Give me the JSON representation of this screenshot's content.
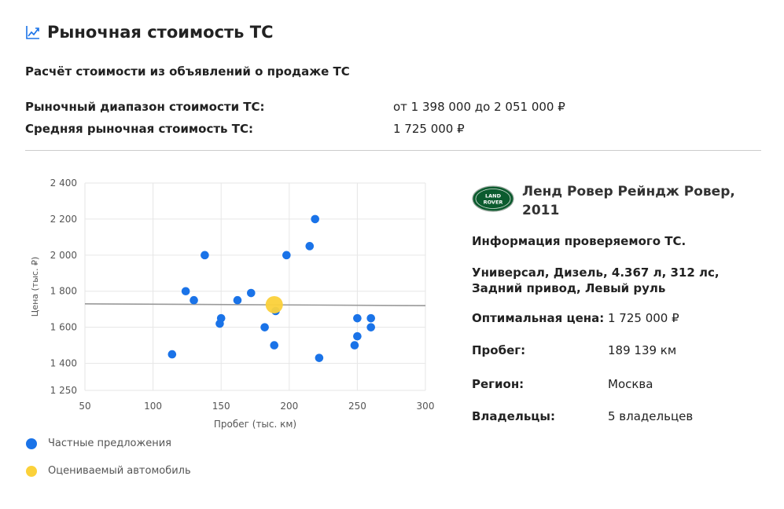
{
  "header": {
    "title": "Рыночная стоимость ТС",
    "icon": "trending-up-icon"
  },
  "subtitle": "Расчёт стоимости из объявлений о продаже ТС",
  "summary": {
    "range_label": "Рыночный диапазон стоимости ТС:",
    "range_value": "от 1 398 000 до 2 051 000 ₽",
    "avg_label": "Средняя рыночная стоимость ТС:",
    "avg_value": "1 725 000 ₽"
  },
  "colors": {
    "accent": "#1a73e8",
    "private": "#1a73e8",
    "estimated": "#fbd13a",
    "trend": "#999999"
  },
  "chart_data": {
    "type": "scatter",
    "xlabel": "Пробег (тыс. км)",
    "ylabel": "Цена (тыс. ₽)",
    "xlim": [
      50,
      300
    ],
    "ylim": [
      1250,
      2400
    ],
    "xticks": [
      50,
      100,
      150,
      200,
      250,
      300
    ],
    "xtick_labels": [
      "50",
      "100",
      "150",
      "200",
      "250",
      "300"
    ],
    "yticks": [
      1250,
      1400,
      1600,
      1800,
      2000,
      2200,
      2400
    ],
    "ytick_labels": [
      "1 250",
      "1 400",
      "1 600",
      "1 800",
      "2 000",
      "2 200",
      "2 400"
    ],
    "grid": true,
    "legend_position": "bottom-left",
    "series": [
      {
        "name": "Частные предложения",
        "points": [
          [
            114,
            1450
          ],
          [
            124,
            1800
          ],
          [
            130,
            1750
          ],
          [
            138,
            2000
          ],
          [
            149,
            1620
          ],
          [
            150,
            1650
          ],
          [
            162,
            1750
          ],
          [
            172,
            1790
          ],
          [
            182,
            1600
          ],
          [
            189,
            1500
          ],
          [
            190,
            1690
          ],
          [
            198,
            2000
          ],
          [
            215,
            2050
          ],
          [
            219,
            2200
          ],
          [
            222,
            1430
          ],
          [
            248,
            1500
          ],
          [
            250,
            1550
          ],
          [
            250,
            1650
          ],
          [
            260,
            1650
          ],
          [
            260,
            1600
          ]
        ]
      },
      {
        "name": "Оцениваемый автомобиль",
        "points": [
          [
            189,
            1725
          ]
        ]
      }
    ],
    "trend_line": {
      "points": [
        [
          50,
          1730
        ],
        [
          300,
          1720
        ]
      ]
    }
  },
  "car": {
    "logo_text_top": "LAND",
    "logo_text_bottom": "ROVER",
    "title": "Ленд Ровер Рейндж Ровер, 2011",
    "info_heading": "Информация проверяемого ТС.",
    "description": "Универсал, Дизель, 4.367 л, 312 лс, Задний привод, Левый руль",
    "rows": [
      {
        "label": "Оптимальная цена:",
        "value": "1 725 000 ₽"
      },
      {
        "label": "Пробег:",
        "value": "189 139 км"
      },
      {
        "label": "Регион:",
        "value": "Москва"
      },
      {
        "label": "Владельцы:",
        "value": "5 владельцев"
      }
    ]
  }
}
